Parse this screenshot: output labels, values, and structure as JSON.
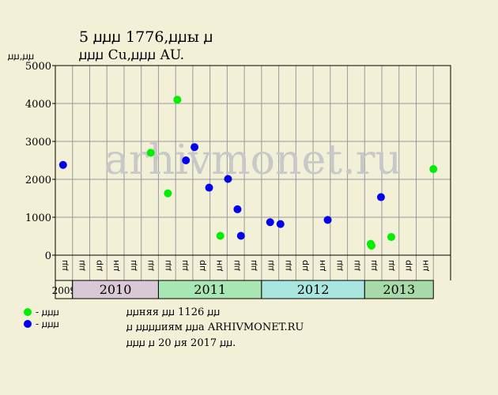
{
  "header": {
    "title_line1": "5 ꙡꙡꙡ 1776,ꙡꙡы ꙡ",
    "title_line2": "ꙡꙡꙡ Cu,ꙡꙡꙡ AU.",
    "y_unit": "ꙡꙡ,ꙡꙡ"
  },
  "legend": [
    {
      "label": "- ꙡꙡꙡ",
      "color": "#00ee00"
    },
    {
      "label": "- ꙡꙡꙡ",
      "color": "#0000ee"
    }
  ],
  "notes": [
    "ꙡꙡняя ꙡꙡ 1126 ꙡꙡ",
    "ꙡ ꙡꙡꙡꙡиям ꙡꙡа ARHIVMONET.RU",
    "ꙡꙡꙡ ꙡ 20 ꙡя 2017 ꙡꙡ."
  ],
  "watermark": "arhivmonet.ru",
  "chart_data": {
    "type": "scatter",
    "ylim": [
      0,
      5000
    ],
    "y_ticks": [
      0,
      1000,
      2000,
      3000,
      4000,
      5000
    ],
    "grid": true,
    "month_labels": [
      "ꙡꙡ",
      "ꙡꙡ",
      "ꙡр",
      "ꙡн",
      "ꙡꙡ",
      "ꙡꙡ",
      "ꙡꙡ",
      "ꙡꙡ",
      "ꙡр",
      "ꙡн",
      "ꙡꙡ",
      "ꙡꙡ",
      "ꙡꙡ",
      "ꙡꙡ",
      "ꙡр",
      "ꙡн",
      "ꙡꙡ",
      "ꙡꙡ",
      "ꙡꙡ",
      "ꙡꙡ",
      "ꙡр",
      "ꙡн"
    ],
    "years": [
      {
        "label": "2009",
        "start": 0,
        "end": 1,
        "color": "#f2f0d6"
      },
      {
        "label": "2010",
        "start": 1,
        "end": 6,
        "color": "#d9c9d6"
      },
      {
        "label": "2011",
        "start": 6,
        "end": 12,
        "color": "#a8e6b4"
      },
      {
        "label": "2012",
        "start": 12,
        "end": 18,
        "color": "#a8e6df"
      },
      {
        "label": "2013",
        "start": 18,
        "end": 22,
        "color": "#a8d9a8"
      }
    ],
    "series": [
      {
        "color": "#00ee00",
        "points": [
          {
            "x": 5.55,
            "y": 2700
          },
          {
            "x": 6.55,
            "y": 1630
          },
          {
            "x": 7.1,
            "y": 4100
          },
          {
            "x": 9.6,
            "y": 510
          },
          {
            "x": 18.35,
            "y": 300
          },
          {
            "x": 18.4,
            "y": 250
          },
          {
            "x": 19.55,
            "y": 480
          },
          {
            "x": 22.0,
            "y": 2270
          }
        ]
      },
      {
        "color": "#0000ee",
        "points": [
          {
            "x": 0.45,
            "y": 2380
          },
          {
            "x": 7.6,
            "y": 2500
          },
          {
            "x": 8.1,
            "y": 2850
          },
          {
            "x": 8.95,
            "y": 1780
          },
          {
            "x": 10.05,
            "y": 2010
          },
          {
            "x": 10.6,
            "y": 1210
          },
          {
            "x": 10.8,
            "y": 510
          },
          {
            "x": 12.5,
            "y": 870
          },
          {
            "x": 13.1,
            "y": 820
          },
          {
            "x": 15.85,
            "y": 930
          },
          {
            "x": 18.95,
            "y": 1530
          }
        ]
      }
    ]
  }
}
